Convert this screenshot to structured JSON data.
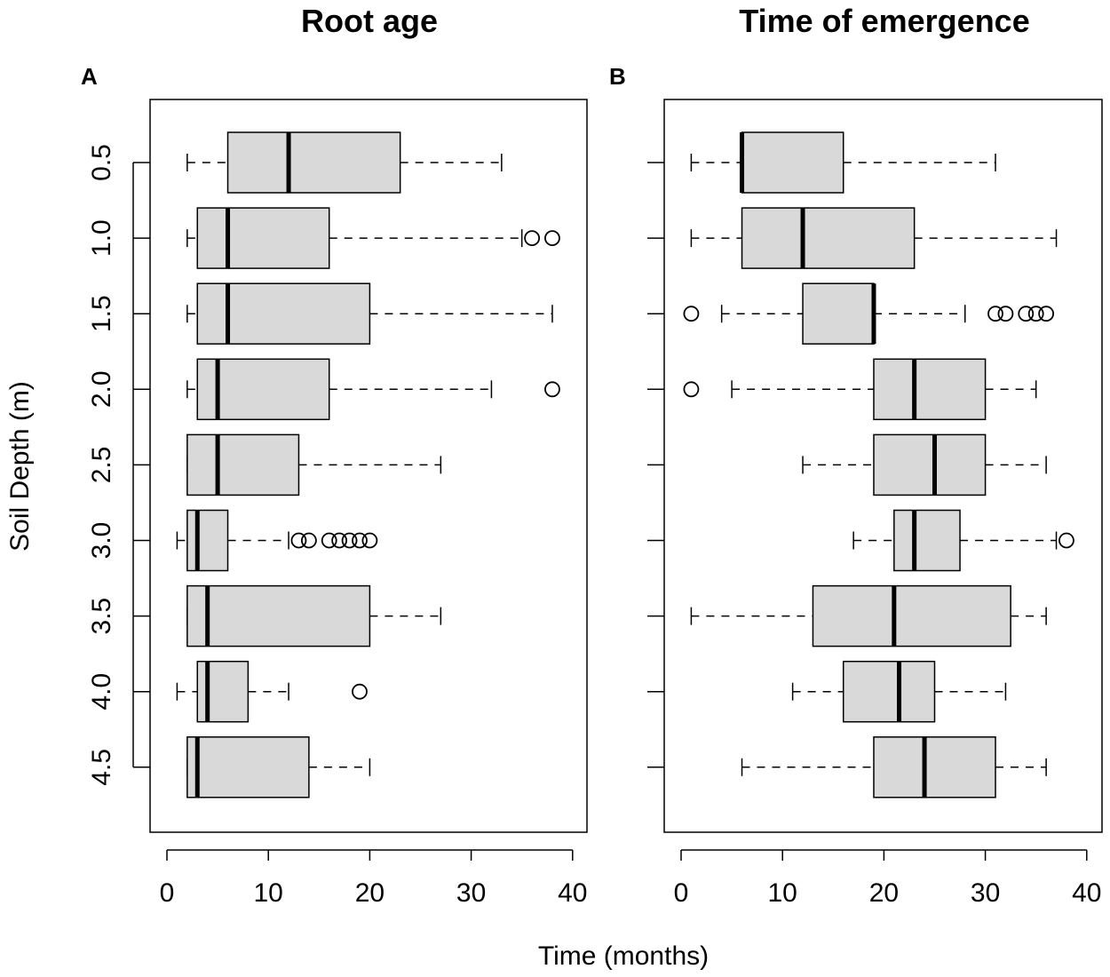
{
  "chart_data": {
    "type": "boxplot",
    "orientation": "horizontal",
    "ylabel": "Soil Depth (m)",
    "xlabel": "Time (months)",
    "categories": [
      "0.5",
      "1.0",
      "1.5",
      "2.0",
      "2.5",
      "3.0",
      "3.5",
      "4.0",
      "4.5"
    ],
    "xlim": [
      0,
      40
    ],
    "xticks": [
      "0",
      "10",
      "20",
      "30",
      "40"
    ],
    "box_fill": "#d9d9d9",
    "panels": [
      {
        "letter": "A",
        "title": "Root age",
        "boxes": [
          {
            "depth": "0.5",
            "whisker_low": 2,
            "q1": 6,
            "median": 12,
            "q3": 23,
            "whisker_high": 33,
            "outliers": []
          },
          {
            "depth": "1.0",
            "whisker_low": 2,
            "q1": 3,
            "median": 6,
            "q3": 16,
            "whisker_high": 35,
            "outliers": [
              36,
              38
            ]
          },
          {
            "depth": "1.5",
            "whisker_low": 2,
            "q1": 3,
            "median": 6,
            "q3": 20,
            "whisker_high": 38,
            "outliers": []
          },
          {
            "depth": "2.0",
            "whisker_low": 2,
            "q1": 3,
            "median": 5,
            "q3": 16,
            "whisker_high": 32,
            "outliers": [
              38
            ]
          },
          {
            "depth": "2.5",
            "whisker_low": 2,
            "q1": 2,
            "median": 5,
            "q3": 13,
            "whisker_high": 27,
            "outliers": []
          },
          {
            "depth": "3.0",
            "whisker_low": 1,
            "q1": 2,
            "median": 3,
            "q3": 6,
            "whisker_high": 12,
            "outliers": [
              13,
              14,
              16,
              17,
              18,
              19,
              20
            ]
          },
          {
            "depth": "3.5",
            "whisker_low": 2,
            "q1": 2,
            "median": 4,
            "q3": 20,
            "whisker_high": 27,
            "outliers": []
          },
          {
            "depth": "4.0",
            "whisker_low": 1,
            "q1": 3,
            "median": 4,
            "q3": 8,
            "whisker_high": 12,
            "outliers": [
              19
            ]
          },
          {
            "depth": "4.5",
            "whisker_low": 2,
            "q1": 2,
            "median": 3,
            "q3": 14,
            "whisker_high": 20,
            "outliers": []
          }
        ]
      },
      {
        "letter": "B",
        "title": "Time of emergence",
        "boxes": [
          {
            "depth": "0.5",
            "whisker_low": 1,
            "q1": 6,
            "median": 6,
            "q3": 16,
            "whisker_high": 31,
            "outliers": []
          },
          {
            "depth": "1.0",
            "whisker_low": 1,
            "q1": 6,
            "median": 12,
            "q3": 23,
            "whisker_high": 37,
            "outliers": []
          },
          {
            "depth": "1.5",
            "whisker_low": 4,
            "q1": 12,
            "median": 19,
            "q3": 19,
            "whisker_high": 28,
            "outliers": [
              1,
              31,
              32,
              34,
              35,
              36
            ]
          },
          {
            "depth": "2.0",
            "whisker_low": 5,
            "q1": 19,
            "median": 23,
            "q3": 30,
            "whisker_high": 35,
            "outliers": [
              1
            ]
          },
          {
            "depth": "2.5",
            "whisker_low": 12,
            "q1": 19,
            "median": 25,
            "q3": 30,
            "whisker_high": 36,
            "outliers": []
          },
          {
            "depth": "3.0",
            "whisker_low": 17,
            "q1": 21,
            "median": 23,
            "q3": 27.5,
            "whisker_high": 37,
            "outliers": [
              38
            ]
          },
          {
            "depth": "3.5",
            "whisker_low": 1,
            "q1": 13,
            "median": 21,
            "q3": 32.5,
            "whisker_high": 36,
            "outliers": []
          },
          {
            "depth": "4.0",
            "whisker_low": 11,
            "q1": 16,
            "median": 21.5,
            "q3": 25,
            "whisker_high": 32,
            "outliers": []
          },
          {
            "depth": "4.5",
            "whisker_low": 6,
            "q1": 19,
            "median": 24,
            "q3": 31,
            "whisker_high": 36,
            "outliers": []
          }
        ]
      }
    ]
  }
}
